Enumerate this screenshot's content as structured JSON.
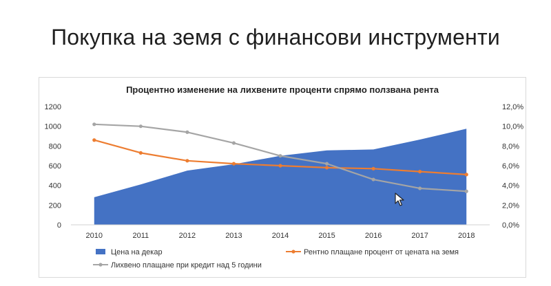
{
  "slide": {
    "title": "Покупка на земя с финансови инструменти"
  },
  "chart_data": {
    "type": "combo",
    "title": "Процентно изменение на лихвените проценти спрямо ползвана рента",
    "categories": [
      "2010",
      "2011",
      "2012",
      "2013",
      "2014",
      "2015",
      "2016",
      "2017",
      "2018"
    ],
    "y_left": {
      "min": 0,
      "max": 1200,
      "step": 200,
      "ticks": [
        "0",
        "200",
        "400",
        "600",
        "800",
        "1000",
        "1200"
      ]
    },
    "y_right": {
      "min": 0,
      "max": 0.12,
      "step": 0.02,
      "ticks": [
        "0,0%",
        "2,0%",
        "4,0%",
        "6,0%",
        "8,0%",
        "10,0%",
        "12,0%"
      ]
    },
    "series": [
      {
        "name": "Цена на декар",
        "kind": "area",
        "axis": "left",
        "color": "#4472c4",
        "values": [
          280,
          410,
          550,
          615,
          700,
          755,
          765,
          865,
          975
        ]
      },
      {
        "name": "Рентно плащане процент от цената на земя",
        "kind": "line",
        "axis": "right",
        "color": "#ed7d31",
        "values": [
          0.086,
          0.073,
          0.065,
          0.062,
          0.06,
          0.058,
          0.057,
          0.054,
          0.051
        ]
      },
      {
        "name": "Лихвено плащане при кредит над 5 години",
        "kind": "line",
        "axis": "right",
        "color": "#a5a5a5",
        "values": [
          0.102,
          0.1,
          0.094,
          0.083,
          0.07,
          0.062,
          0.046,
          0.037,
          0.034
        ]
      }
    ],
    "grid": false,
    "legend_position": "bottom"
  },
  "icons": {
    "cursor": "mouse-pointer-icon"
  }
}
